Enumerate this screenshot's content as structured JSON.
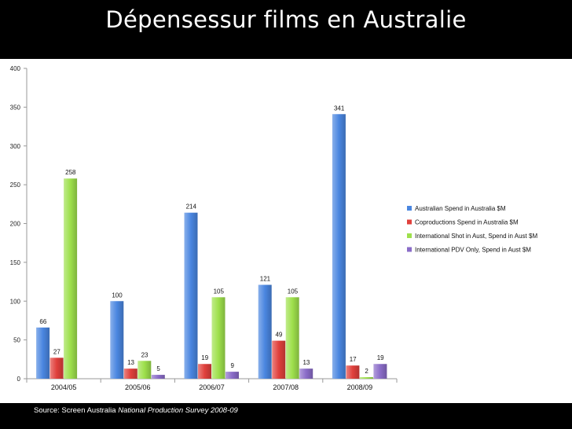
{
  "title": "Dépensessur films en Australie",
  "source": {
    "prefix": "Source: Screen Australia",
    "italic": "National Production Survey 2008-09"
  },
  "chart_data": {
    "type": "bar",
    "title": "Dépensessur films en Australie",
    "categories": [
      "2004/05",
      "2005/06",
      "2006/07",
      "2007/08",
      "2008/09"
    ],
    "series": [
      {
        "name": "Australian Spend in Australia $M",
        "values": [
          66,
          100,
          214,
          121,
          341
        ],
        "color": "#4a86e0"
      },
      {
        "name": "Coproductions Spend in Australia $M",
        "values": [
          27,
          13,
          19,
          49,
          17
        ],
        "color": "#e0403c"
      },
      {
        "name": "International Shot in Aust, Spend in Aust $M",
        "values": [
          258,
          23,
          105,
          105,
          2
        ],
        "color": "#9ee04c"
      },
      {
        "name": "International PDV Only, Spend in Aust $M",
        "values": [
          null,
          5,
          9,
          13,
          19
        ],
        "color": "#8a6cc8"
      }
    ],
    "ylim": [
      0,
      400
    ],
    "yticks": [
      0,
      50,
      100,
      150,
      200,
      250,
      300,
      350,
      400
    ],
    "grid": false,
    "legend_position": "right"
  }
}
